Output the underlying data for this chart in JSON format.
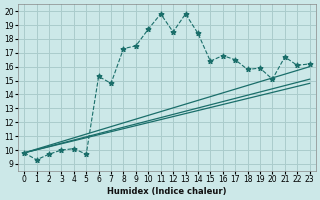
{
  "xlabel": "Humidex (Indice chaleur)",
  "background_color": "#cce8e8",
  "grid_color": "#aacccc",
  "line_color": "#1a6e6a",
  "xlim": [
    -0.5,
    23.5
  ],
  "ylim": [
    8.5,
    20.5
  ],
  "yticks": [
    9,
    10,
    11,
    12,
    13,
    14,
    15,
    16,
    17,
    18,
    19,
    20
  ],
  "xticks": [
    0,
    1,
    2,
    3,
    4,
    5,
    6,
    7,
    8,
    9,
    10,
    11,
    12,
    13,
    14,
    15,
    16,
    17,
    18,
    19,
    20,
    21,
    22,
    23
  ],
  "scatter_x": [
    0,
    1,
    2,
    3,
    4,
    5,
    6,
    7,
    8,
    9,
    10,
    11,
    12,
    13,
    14,
    15,
    16,
    17,
    18,
    19,
    20,
    21,
    22,
    23
  ],
  "scatter_y": [
    9.8,
    9.3,
    9.7,
    10.0,
    10.1,
    9.7,
    15.3,
    14.8,
    17.3,
    17.5,
    18.7,
    19.8,
    18.5,
    19.8,
    18.4,
    16.4,
    16.8,
    16.5,
    15.8,
    15.9,
    15.1,
    16.7,
    16.1,
    16.2
  ],
  "line1_x": [
    0,
    23
  ],
  "line1_y": [
    9.8,
    15.1
  ],
  "line2_x": [
    0,
    23
  ],
  "line2_y": [
    9.8,
    14.8
  ],
  "line3_x": [
    0,
    23
  ],
  "line3_y": [
    9.8,
    16.0
  ]
}
